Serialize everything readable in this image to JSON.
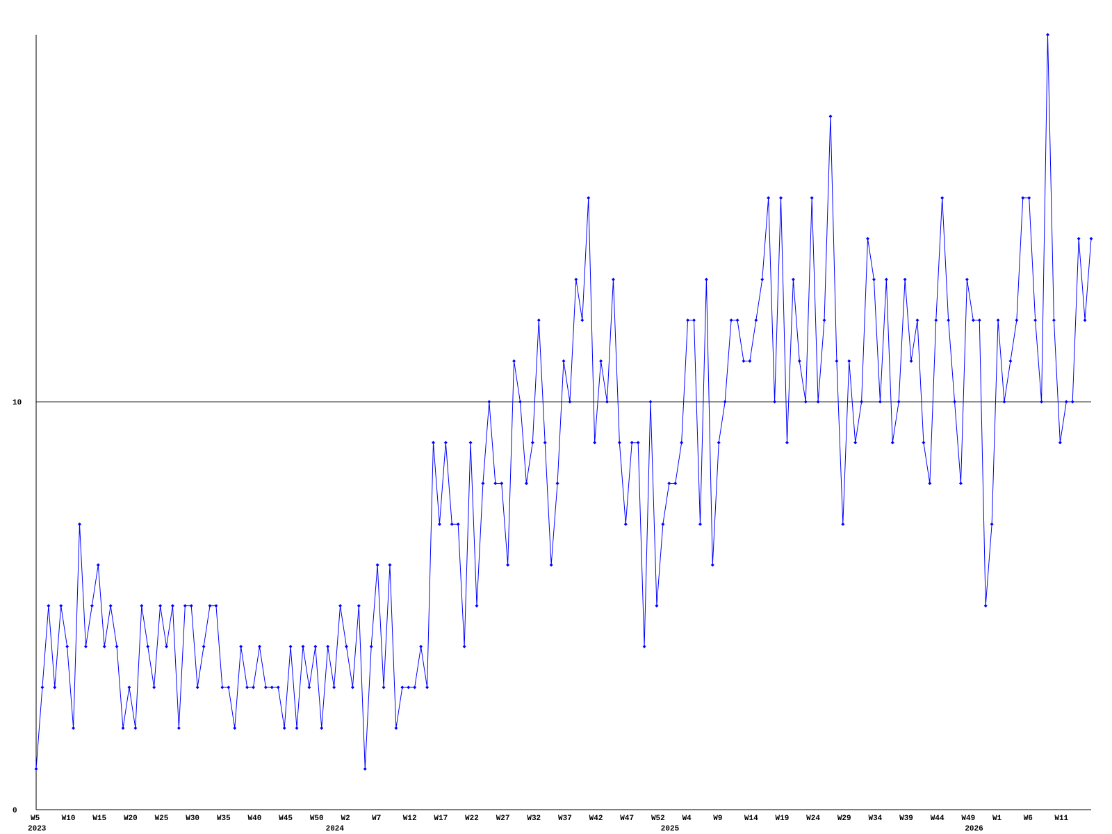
{
  "chart_data": {
    "type": "line",
    "categories": [
      "W5",
      null,
      null,
      null,
      null,
      "W10",
      null,
      null,
      null,
      null,
      "W15",
      null,
      null,
      null,
      null,
      "W20",
      null,
      null,
      null,
      null,
      "W25",
      null,
      null,
      null,
      null,
      "W30",
      null,
      null,
      null,
      null,
      "W35",
      null,
      null,
      null,
      null,
      "W40",
      null,
      null,
      null,
      null,
      "W45",
      null,
      null,
      null,
      null,
      "W50",
      null,
      null,
      null,
      null,
      "W2",
      null,
      null,
      null,
      null,
      "W7",
      null,
      null,
      null,
      null,
      "W12",
      null,
      null,
      null,
      null,
      "W17",
      null,
      null,
      null,
      null,
      "W22",
      null,
      null,
      null,
      null,
      "W27",
      null,
      null,
      null,
      null,
      "W32",
      null,
      null,
      null,
      null,
      "W37",
      null,
      null,
      null,
      null,
      "W42",
      null,
      null,
      null,
      null,
      "W47",
      null,
      null,
      null,
      null,
      "W52",
      null,
      null,
      null,
      null,
      "W4",
      null,
      null,
      null,
      null,
      "W9",
      null,
      null,
      null,
      null,
      "W14",
      null,
      null,
      null,
      null,
      "W19",
      null,
      null,
      null,
      null,
      "W24",
      null,
      null,
      null,
      null,
      "W29",
      null,
      null,
      null,
      null,
      "W34",
      null,
      null,
      null,
      null,
      "W39",
      null,
      null,
      null,
      null,
      "W44",
      null,
      null,
      null,
      null,
      "W49",
      null,
      null,
      null,
      null,
      "W1",
      null,
      null,
      null,
      null,
      "W6",
      null,
      null,
      null,
      null,
      "W11",
      null,
      null,
      null,
      null,
      null
    ],
    "year_labels": [
      "2023",
      null,
      null,
      null,
      null,
      null,
      null,
      null,
      null,
      null,
      null,
      null,
      null,
      null,
      null,
      null,
      null,
      null,
      null,
      null,
      null,
      null,
      null,
      null,
      null,
      null,
      null,
      null,
      null,
      null,
      null,
      null,
      null,
      null,
      null,
      null,
      null,
      null,
      null,
      null,
      null,
      null,
      null,
      null,
      null,
      null,
      null,
      null,
      "2024",
      null,
      null,
      null,
      null,
      null,
      null,
      null,
      null,
      null,
      null,
      null,
      null,
      null,
      null,
      null,
      null,
      null,
      null,
      null,
      null,
      null,
      null,
      null,
      null,
      null,
      null,
      null,
      null,
      null,
      null,
      null,
      null,
      null,
      null,
      null,
      null,
      null,
      null,
      null,
      null,
      null,
      null,
      null,
      null,
      null,
      null,
      null,
      null,
      null,
      null,
      null,
      null,
      null,
      "2025",
      null,
      null,
      null,
      null,
      null,
      null,
      null,
      null,
      null,
      null,
      null,
      null,
      null,
      null,
      null,
      null,
      null,
      null,
      null,
      null,
      null,
      null,
      null,
      null,
      null,
      null,
      null,
      null,
      null,
      null,
      null,
      null,
      null,
      null,
      null,
      null,
      null,
      null,
      null,
      null,
      null,
      null,
      null,
      null,
      null,
      null,
      null,
      null,
      "2026",
      null,
      null,
      null,
      null,
      null,
      null,
      null,
      null,
      null,
      null,
      null,
      null,
      null,
      null,
      null
    ],
    "series": [
      {
        "color": "#0000ff",
        "values": [
          1,
          3,
          5,
          3,
          5,
          4,
          2,
          7,
          4,
          5,
          6,
          4,
          5,
          4,
          2,
          3,
          2,
          5,
          4,
          3,
          5,
          4,
          5,
          2,
          5,
          5,
          3,
          4,
          5,
          5,
          3,
          3,
          2,
          4,
          3,
          3,
          4,
          3,
          3,
          3,
          2,
          4,
          2,
          4,
          3,
          4,
          2,
          4,
          3,
          5,
          4,
          3,
          5,
          1,
          4,
          6,
          3,
          6,
          2,
          3,
          3,
          3,
          4,
          3,
          9,
          7,
          9,
          7,
          7,
          4,
          9,
          5,
          8,
          10,
          8,
          8,
          6,
          11,
          10,
          8,
          9,
          12,
          9,
          6,
          8,
          11,
          10,
          13,
          12,
          15,
          9,
          11,
          10,
          13,
          9,
          7,
          9,
          9,
          4,
          10,
          5,
          7,
          8,
          8,
          9,
          12,
          12,
          7,
          13,
          6,
          9,
          10,
          12,
          12,
          11,
          11,
          12,
          13,
          15,
          10,
          15,
          9,
          13,
          11,
          10,
          15,
          10,
          12,
          17,
          11,
          7,
          11,
          9,
          10,
          14,
          13,
          10,
          13,
          9,
          10,
          13,
          11,
          12,
          9,
          8,
          12,
          15,
          12,
          10,
          8,
          13,
          12,
          12,
          5,
          7,
          12,
          10,
          11,
          12,
          15,
          15,
          12,
          10,
          19,
          12,
          9,
          10,
          10,
          14,
          12,
          14
        ]
      }
    ],
    "ylim": [
      0,
      19
    ],
    "yticks": [
      0,
      10
    ],
    "grid": true
  }
}
